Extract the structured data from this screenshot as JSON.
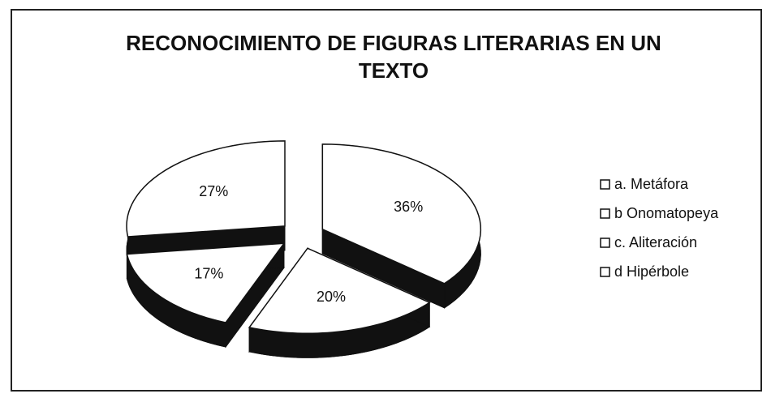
{
  "chart_data": {
    "type": "pie",
    "title": "RECONOCIMIENTO DE FIGURAS LITERARIAS EN UN TEXTO",
    "categories": [
      "a. Metáfora",
      "b  Onomatopeya",
      "c. Aliteración",
      "d  Hipérbole"
    ],
    "values": [
      36,
      20,
      17,
      27
    ],
    "value_labels": [
      "36%",
      "20%",
      "17%",
      "27%"
    ],
    "color": "#ffffff",
    "legend": "right"
  }
}
